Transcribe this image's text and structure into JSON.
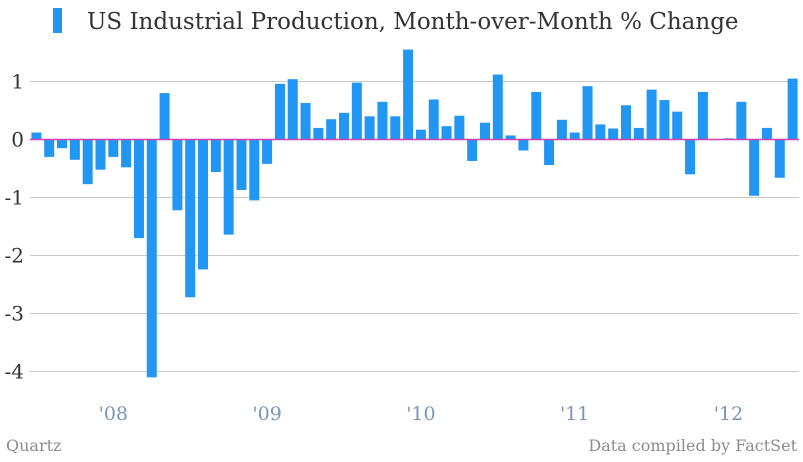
{
  "footer": {
    "source_left": "Quartz",
    "source_right": "Data compiled by FactSet"
  },
  "colors": {
    "bar": "#2196f3",
    "zero_line": "#d63fb0",
    "grid": "#c8c8c8"
  },
  "chart_data": {
    "type": "bar",
    "title": "",
    "xlabel": "",
    "ylabel": "",
    "legend": "US Industrial Production, Month-over-Month % Change",
    "legend_position": "top-left",
    "grid": true,
    "ylim": [
      -4.2,
      1.7
    ],
    "yticks": [
      1,
      0,
      -1,
      -2,
      -3,
      -4
    ],
    "ytick_labels": [
      "1",
      "0",
      "-1",
      "-2",
      "-3",
      "-4"
    ],
    "xtick_labels": [
      {
        "label": "'08",
        "month_index": 6
      },
      {
        "label": "'09",
        "month_index": 18
      },
      {
        "label": "'10",
        "month_index": 30
      },
      {
        "label": "'11",
        "month_index": 42
      },
      {
        "label": "'12",
        "month_index": 54
      }
    ],
    "series": [
      {
        "values": [
          0.12,
          -0.3,
          -0.15,
          -0.35,
          -0.77,
          -0.52,
          -0.3,
          -0.48,
          -1.7,
          -4.1,
          0.8,
          -1.22,
          -2.72,
          -2.24,
          -0.56,
          -1.64,
          -0.87,
          -1.05,
          -0.42,
          0.96,
          1.04,
          0.63,
          0.2,
          0.35,
          0.46,
          0.98,
          0.4,
          0.65,
          0.4,
          1.55,
          0.17,
          0.69,
          0.23,
          0.41,
          -0.37,
          0.29,
          1.12,
          0.07,
          -0.19,
          0.82,
          -0.44,
          0.34,
          0.12,
          0.92,
          0.26,
          0.19,
          0.59,
          0.2,
          0.86,
          0.68,
          0.48,
          -0.6,
          0.82,
          0.0,
          0.02,
          0.65,
          -0.97,
          0.2,
          -0.66,
          1.05
        ]
      }
    ]
  }
}
